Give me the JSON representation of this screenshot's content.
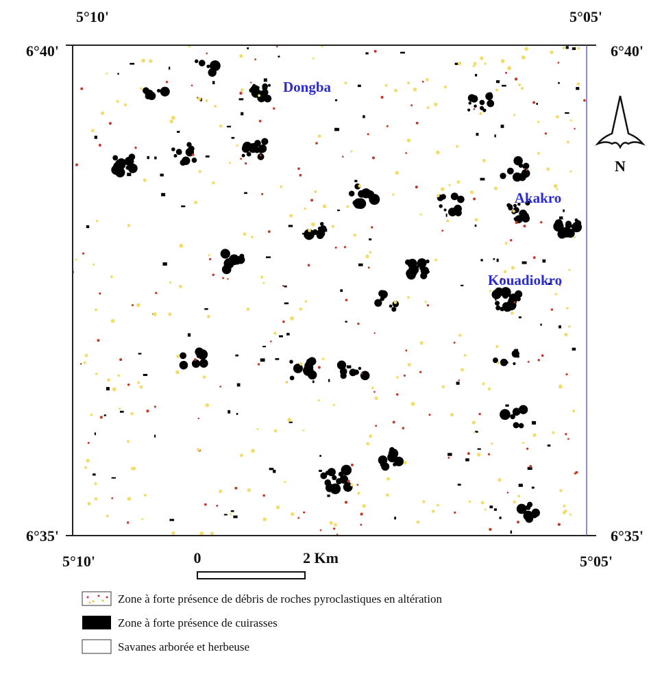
{
  "coordinates": {
    "top_left": "5°10'",
    "top_right": "5°05'",
    "left_top": "6°40'",
    "right_top": "6°40'",
    "left_bottom": "6°35'",
    "right_bottom": "6°35'",
    "bottom_left": "5°10'",
    "bottom_right": "5°05'"
  },
  "places": [
    {
      "label": "Dongba"
    },
    {
      "label": "Akakro"
    },
    {
      "label": "Kouadiokro"
    }
  ],
  "north": "N",
  "scale": {
    "start": "0",
    "end": "2 Km"
  },
  "legend": [
    {
      "label": "Zone à forte présence de débris de roches pyroclastiques  en altération"
    },
    {
      "label": "Zone à forte présence de cuirasses"
    },
    {
      "label": "Savanes arborée et herbeuse"
    }
  ]
}
